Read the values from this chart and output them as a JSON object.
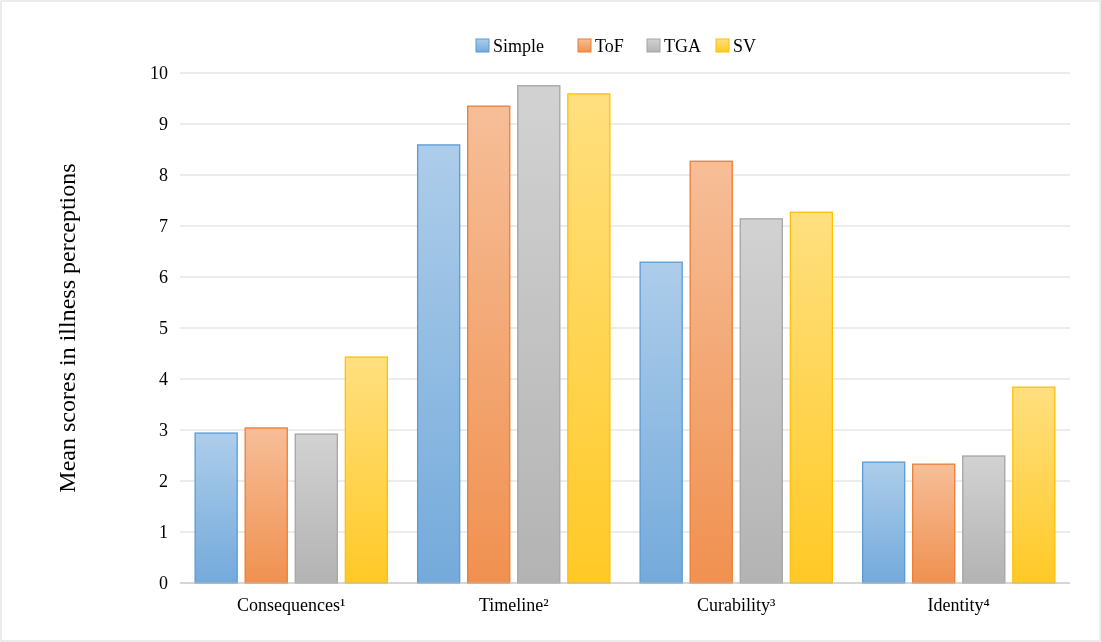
{
  "chart_data": {
    "type": "bar",
    "ylabel": "Mean scores in illness perceptions",
    "categories": [
      "Consequences¹",
      "Timeline²",
      "Curability³",
      "Identity⁴"
    ],
    "series": [
      {
        "name": "Simple",
        "color": "#5b9bd5",
        "values": [
          2.94,
          8.59,
          6.29,
          2.37
        ]
      },
      {
        "name": "ToF",
        "color": "#ed7d31",
        "values": [
          3.04,
          9.35,
          8.27,
          2.33
        ]
      },
      {
        "name": "TGA",
        "color": "#a5a5a5",
        "values": [
          2.92,
          9.75,
          7.14,
          2.49
        ]
      },
      {
        "name": "SV",
        "color": "#ffc000",
        "values": [
          4.43,
          9.59,
          7.27,
          3.84
        ]
      }
    ],
    "ylim": [
      0,
      10
    ],
    "yticks": [
      0,
      1,
      2,
      3,
      4,
      5,
      6,
      7,
      8,
      9,
      10
    ],
    "grid": "y",
    "legend": "top"
  }
}
